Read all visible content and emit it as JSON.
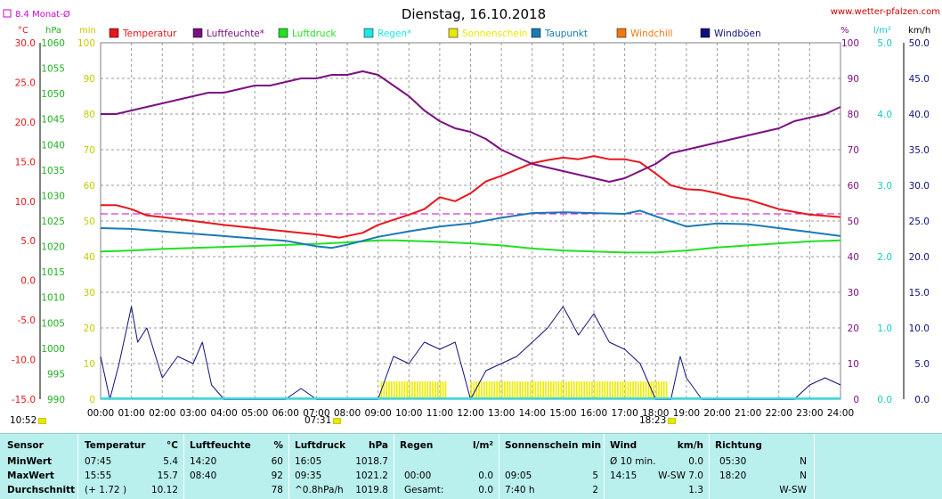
{
  "header": {
    "title": "Dienstag, 16.10.2018",
    "site": "www.wetter-pfalzen.com",
    "avg_label": "8.4 Monat-Ø",
    "unit_left_c": "°C",
    "unit_left_hpa": "hPa",
    "unit_left_min": "min",
    "unit_right_pct": "%",
    "unit_right_lm2": "l/m²",
    "unit_right_kmh": "km/h"
  },
  "legend": [
    {
      "label": "Temperatur",
      "color": "#e8161b"
    },
    {
      "label": "Luftfeuchte*",
      "color": "#7b1080"
    },
    {
      "label": "Luftdruck",
      "color": "#22e022"
    },
    {
      "label": "Regen*",
      "color": "#1ae8e8"
    },
    {
      "label": "Sonnenschein",
      "color": "#e8e800"
    },
    {
      "label": "Taupunkt",
      "color": "#1a7ab8"
    },
    {
      "label": "Windchill",
      "color": "#f07a10"
    },
    {
      "label": "Windböen",
      "color": "#10107a"
    }
  ],
  "sun_times": {
    "sunrise": "07:31",
    "sunset": "18:23"
  },
  "chart_data": {
    "type": "line",
    "x_ticks": [
      "00:00",
      "01:00",
      "02:00",
      "03:00",
      "04:00",
      "05:00",
      "06:00",
      "07:00",
      "08:00",
      "09:00",
      "10:00",
      "11:00",
      "12:00",
      "13:00",
      "14:00",
      "15:00",
      "16:00",
      "17:00",
      "18:00",
      "19:00",
      "20:00",
      "21:00",
      "22:00",
      "23:00",
      "24:00"
    ],
    "axes": {
      "temp_c": {
        "ticks": [
          "30.0",
          "25.0",
          "20.0",
          "15.0",
          "10.0",
          "5.0",
          "0.0",
          "-5.0",
          "-10.0",
          "-15.0"
        ],
        "range": [
          -15,
          30
        ]
      },
      "pressure_hpa": {
        "ticks": [
          "1060",
          "1055",
          "1050",
          "1045",
          "1040",
          "1035",
          "1030",
          "1025",
          "1020",
          "1015",
          "1010",
          "1005",
          "1000",
          "995",
          "990"
        ],
        "range": [
          990,
          1060
        ]
      },
      "sun_min": {
        "ticks": [
          "100",
          "90",
          "80",
          "70",
          "60",
          "50",
          "40",
          "30",
          "20",
          "10",
          "0"
        ],
        "range": [
          0,
          100
        ]
      },
      "humidity_pct": {
        "ticks": [
          "100",
          "90",
          "80",
          "70",
          "60",
          "50",
          "40",
          "30",
          "20",
          "10",
          "0"
        ],
        "range": [
          0,
          100
        ]
      },
      "rain_lm2": {
        "ticks": [
          "5.0",
          "4.0",
          "3.0",
          "2.0",
          "1.0",
          "0.0"
        ],
        "range": [
          0,
          5
        ]
      },
      "wind_kmh": {
        "ticks": [
          "50.0",
          "45.0",
          "40.0",
          "35.0",
          "30.0",
          "25.0",
          "20.0",
          "15.0",
          "10.0",
          "5.0",
          "0.0"
        ],
        "range": [
          0,
          50
        ]
      }
    },
    "month_avg_temp": 8.4,
    "series": [
      {
        "name": "Temperatur",
        "axis": "temp_c",
        "x": [
          0,
          0.5,
          1,
          1.5,
          2,
          3,
          4,
          5,
          6,
          7,
          7.75,
          8.5,
          9,
          10,
          10.5,
          11,
          11.5,
          12,
          12.5,
          13,
          13.5,
          14,
          14.5,
          15,
          15.5,
          16,
          16.5,
          17,
          17.5,
          18,
          18.5,
          19,
          19.5,
          20,
          20.5,
          21,
          22,
          23,
          24
        ],
        "y": [
          9.5,
          9.5,
          9.0,
          8.2,
          8.0,
          7.5,
          7.0,
          6.6,
          6.2,
          5.8,
          5.4,
          6.0,
          7.0,
          8.3,
          9.0,
          10.5,
          10.0,
          11.0,
          12.5,
          13.2,
          14.0,
          14.8,
          15.2,
          15.5,
          15.3,
          15.7,
          15.3,
          15.3,
          14.9,
          13.5,
          12.0,
          11.5,
          11.4,
          11.0,
          10.5,
          10.2,
          9.0,
          8.3,
          8.0
        ]
      },
      {
        "name": "Luftfeuchte*",
        "axis": "humidity_pct",
        "x": [
          0,
          0.5,
          1,
          1.5,
          2,
          2.5,
          3,
          3.5,
          4,
          4.5,
          5,
          5.5,
          6,
          6.5,
          7,
          7.5,
          8,
          8.5,
          9,
          9.5,
          10,
          10.5,
          11,
          11.5,
          12,
          12.5,
          13,
          13.5,
          14,
          14.5,
          15,
          15.5,
          16,
          16.5,
          17,
          17.5,
          18,
          18.5,
          19,
          19.5,
          20,
          20.5,
          21,
          21.5,
          22,
          22.5,
          23,
          23.5,
          24
        ],
        "y": [
          80,
          80,
          81,
          82,
          83,
          84,
          85,
          86,
          86,
          87,
          88,
          88,
          89,
          90,
          90,
          91,
          91,
          92,
          91,
          88,
          85,
          81,
          78,
          76,
          75,
          73,
          70,
          68,
          66,
          65,
          64,
          63,
          62,
          61,
          62,
          64,
          66,
          69,
          70,
          71,
          72,
          73,
          74,
          75,
          76,
          78,
          79,
          80,
          82
        ]
      },
      {
        "name": "Luftdruck",
        "axis": "pressure_hpa",
        "x": [
          0,
          1,
          2,
          3,
          4,
          5,
          6,
          7,
          8,
          9,
          9.58,
          10,
          11,
          12,
          13,
          14,
          15,
          16,
          17,
          18,
          19,
          20,
          21,
          22,
          23,
          24
        ],
        "y": [
          1019.0,
          1019.2,
          1019.5,
          1019.7,
          1019.9,
          1020.1,
          1020.3,
          1020.5,
          1020.8,
          1021.2,
          1021.2,
          1021.1,
          1020.9,
          1020.6,
          1020.2,
          1019.6,
          1019.2,
          1019.0,
          1018.8,
          1018.8,
          1019.2,
          1019.8,
          1020.2,
          1020.6,
          1021.0,
          1021.2
        ]
      },
      {
        "name": "Taupunkt",
        "axis": "temp_c",
        "x": [
          0,
          1,
          2,
          3,
          4,
          5,
          6,
          7,
          7.5,
          8,
          9,
          10,
          11,
          12,
          13,
          14,
          15,
          16,
          17,
          17.5,
          18,
          19,
          20,
          21,
          22,
          23,
          24
        ],
        "y": [
          6.6,
          6.5,
          6.2,
          5.9,
          5.6,
          5.3,
          5.0,
          4.3,
          4.1,
          4.5,
          5.5,
          6.2,
          6.8,
          7.2,
          7.9,
          8.5,
          8.6,
          8.5,
          8.4,
          8.8,
          8.1,
          6.8,
          7.2,
          7.1,
          6.6,
          6.1,
          5.6
        ]
      },
      {
        "name": "Windböen",
        "axis": "wind_kmh",
        "x": [
          0,
          0.3,
          0.6,
          1,
          1.2,
          1.5,
          2,
          2.5,
          3,
          3.3,
          3.6,
          4,
          6,
          6.5,
          7,
          9,
          9.5,
          10,
          10.5,
          11,
          11.5,
          12,
          12.5,
          13,
          13.5,
          14,
          14.5,
          15,
          15.5,
          16,
          16.5,
          17,
          17.5,
          18,
          18.5,
          18.8,
          19,
          19.5,
          20,
          22.5,
          23,
          23.5,
          24
        ],
        "y": [
          6,
          0,
          5,
          13,
          8,
          10,
          3,
          6,
          5,
          8,
          2,
          0,
          0,
          1.5,
          0,
          0,
          6,
          5,
          8,
          7,
          8,
          0,
          4,
          5,
          6,
          8,
          10,
          13,
          9,
          12,
          8,
          7,
          5,
          0,
          0,
          6,
          3,
          0,
          0,
          0,
          2,
          3,
          2
        ]
      }
    ],
    "sunshine_bars": [
      {
        "from": "09:05",
        "to": "11:15"
      },
      {
        "from": "12:00",
        "to": "18:20"
      }
    ]
  },
  "stats": {
    "headers": {
      "sensor": "Sensor",
      "temp": "Temperatur",
      "temp_unit": "°C",
      "hum": "Luftfeuchte",
      "hum_unit": "%",
      "press": "Luftdruck",
      "press_unit": "hPa",
      "rain": "Regen",
      "rain_unit": "l/m²",
      "sun": "Sonnenschein min",
      "wind": "Wind",
      "wind_unit": "km/h",
      "dir": "Richtung"
    },
    "rows": [
      {
        "label": "MinWert",
        "temp_time": "07:45",
        "temp_val": "5.4",
        "hum_time": "14:20",
        "hum_val": "60",
        "press_time": "16:05",
        "press_val": "1018.7",
        "rain_time": "",
        "rain_val": "",
        "sun_time": "",
        "sun_val": "",
        "wind_time": "Ø 10 min.",
        "wind_val": "0.0",
        "dir_time": "05:30",
        "dir_val": "N"
      },
      {
        "label": "MaxWert",
        "temp_time": "15:55",
        "temp_val": "15.7",
        "hum_time": "08:40",
        "hum_val": "92",
        "press_time": "09:35",
        "press_val": "1021.2",
        "rain_time": "00:00",
        "rain_val": "0.0",
        "sun_time": "09:05",
        "sun_val": "5",
        "wind_time": "14:15",
        "wind_val": "W-SW 7.0",
        "dir_time": "18:20",
        "dir_val": "N"
      },
      {
        "label": "Durchschnitt",
        "temp_time": "(+ 1.72 )",
        "temp_val": "10.12",
        "hum_time": "",
        "hum_val": "78",
        "press_time": "^0.8hPa/h",
        "press_val": "1019.8",
        "rain_time": "Gesamt:",
        "rain_val": "0.0",
        "sun_time": "7:40 h",
        "sun_val": "2",
        "wind_time": "",
        "wind_val": "1.3",
        "dir_time": "",
        "dir_val": "W-SW"
      }
    ]
  },
  "bottom_left_time": "10:52"
}
